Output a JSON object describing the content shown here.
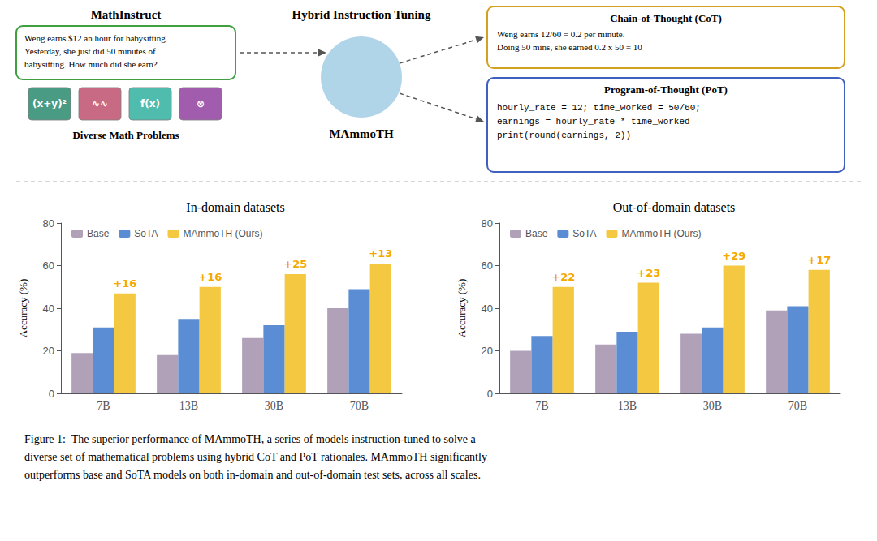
{
  "chart_data": [
    {
      "type": "bar",
      "title": "In-domain datasets",
      "categories": [
        "7B",
        "13B",
        "30B",
        "70B"
      ],
      "series": [
        {
          "name": "Base",
          "color": "#b0a0b8",
          "values": [
            19,
            18,
            26,
            40
          ]
        },
        {
          "name": "SoTA",
          "color": "#5b8dd4",
          "values": [
            31,
            35,
            32,
            49
          ]
        },
        {
          "name": "MAmmoTH (Ours)",
          "color": "#f5c842",
          "values": [
            47,
            50,
            56,
            61
          ],
          "annotations": [
            {
              "text": "+16",
              "color": "#f5a800"
            },
            {
              "text": "+16",
              "color": "#f5a800"
            },
            {
              "text": "+25",
              "color": "#f5a800"
            },
            {
              "text": "+13",
              "color": "#f5a800"
            }
          ]
        }
      ],
      "ylabel": "Accuracy (%)",
      "ylim": [
        0,
        80
      ],
      "yticks": [
        0,
        20,
        40,
        60,
        80
      ],
      "grid": false,
      "legend": "upper left"
    },
    {
      "type": "bar",
      "title": "Out-of-domain datasets",
      "categories": [
        "7B",
        "13B",
        "30B",
        "70B"
      ],
      "series": [
        {
          "name": "Base",
          "color": "#b0a0b8",
          "values": [
            20,
            23,
            28,
            39
          ]
        },
        {
          "name": "SoTA",
          "color": "#5b8dd4",
          "values": [
            27,
            29,
            31,
            41
          ]
        },
        {
          "name": "MAmmoTH (Ours)",
          "color": "#f5c842",
          "values": [
            50,
            52,
            60,
            58
          ],
          "annotations": [
            {
              "text": "+22",
              "color": "#f5a800"
            },
            {
              "text": "+23",
              "color": "#f5a800"
            },
            {
              "text": "+29",
              "color": "#f5a800"
            },
            {
              "text": "+17",
              "color": "#f5a800"
            }
          ]
        }
      ],
      "ylabel": "Accuracy (%)",
      "ylim": [
        0,
        80
      ],
      "yticks": [
        0,
        20,
        40,
        60,
        80
      ],
      "grid": false,
      "legend": "upper left"
    }
  ],
  "diagram": {
    "mathinst_title": "MathInstruct",
    "hybrid_title": "Hybrid Instruction Tuning",
    "mammoth_label": "MAmmoTH",
    "diverse_label": "Diverse Math Problems",
    "cot_title": "Chain-of-Thought (CoT)",
    "cot_text": "Weng earns 12/60 = 0.2 per minute.\nDoing 50 mins, she earned 0.2 x 50 = 10",
    "pot_title": "Program-of-Thought (PoT)",
    "pot_text": "hourly_rate = 12; time_worked = 50/60;\nearnings = hourly_rate * time_worked\nprint(round(earnings, 2))",
    "problem_text": "Weng earns $12 an hour for babysitting.\nYesterday, she just did 50 minutes of\nbabysitting. How much did she earn?",
    "cot_border": "#d4a020",
    "pot_border": "#4060c0",
    "problem_border": "#40a040",
    "icons": [
      {
        "text": "(x+y)²",
        "color": "#2a8a6e"
      },
      {
        "text": "∿∿",
        "color": "#c05070"
      },
      {
        "text": "f(x)",
        "color": "#30b0a0"
      },
      {
        "text": "⊗",
        "color": "#9040a0"
      }
    ]
  },
  "caption": "Figure 1:  The superior performance of MAmmoTH, a series of models instruction-tuned to solve a\ndiverse set of mathematical problems using hybrid CoT and PoT rationales. MAmmoTH significantly\noutperforms base and SoTA models on both in-domain and out-of-domain test sets, across all scales."
}
